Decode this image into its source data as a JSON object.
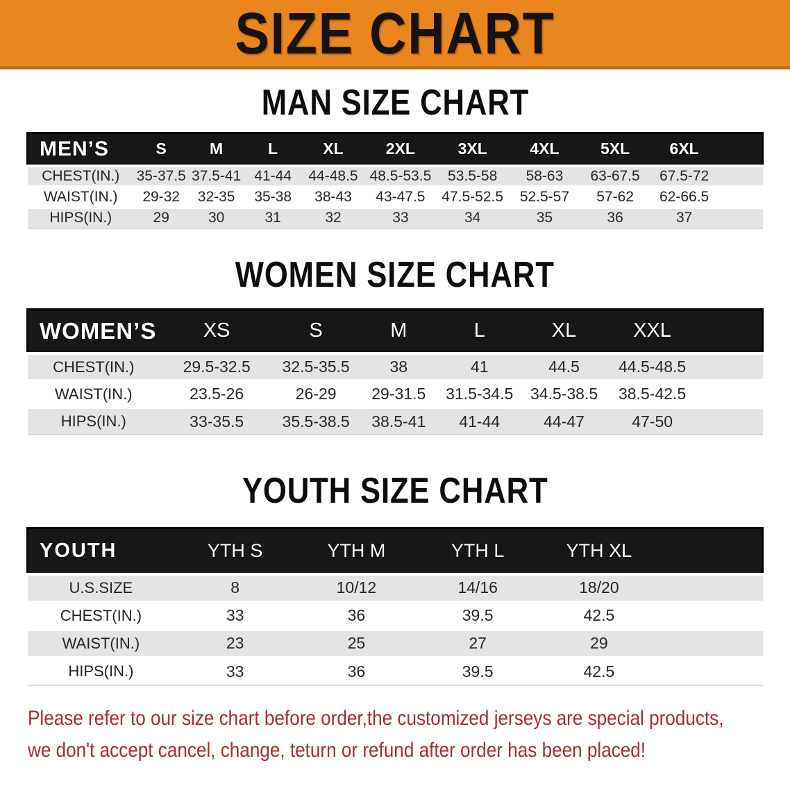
{
  "banner": {
    "title": "SIZE CHART"
  },
  "colors": {
    "banner_orange": "#E9861D",
    "banner_edge": "#BF6A10",
    "table_header_black": "#171717",
    "row_stripe_gray": "#E4E4E4",
    "disclaimer_red": "#A62E31"
  },
  "sections": [
    {
      "id": "men",
      "title": "MAN SIZE CHART",
      "table": {
        "label": "MEN’S",
        "columns": [
          "S",
          "M",
          "L",
          "XL",
          "2XL",
          "3XL",
          "4XL",
          "5XL",
          "6XL"
        ],
        "rows": [
          {
            "label": "CHEST(IN.)",
            "values": [
              "35-37.5",
              "37.5-41",
              "41-44",
              "44-48.5",
              "48.5-53.5",
              "53.5-58",
              "58-63",
              "63-67.5",
              "67.5-72"
            ]
          },
          {
            "label": "WAIST(IN.)",
            "values": [
              "29-32",
              "32-35",
              "35-38",
              "38-43",
              "43-47.5",
              "47.5-52.5",
              "52.5-57",
              "57-62",
              "62-66.5"
            ]
          },
          {
            "label": "HIPS(IN.)",
            "values": [
              "29",
              "30",
              "31",
              "32",
              "33",
              "34",
              "35",
              "36",
              "37"
            ]
          }
        ]
      }
    },
    {
      "id": "women",
      "title": "WOMEN SIZE CHART",
      "table": {
        "label": "WOMEN’S",
        "columns": [
          "XS",
          "S",
          "M",
          "L",
          "XL",
          "XXL"
        ],
        "rows": [
          {
            "label": "CHEST(IN.)",
            "values": [
              "29.5-32.5",
              "32.5-35.5",
              "38",
              "41",
              "44.5",
              "44.5-48.5"
            ]
          },
          {
            "label": "WAIST(IN.)",
            "values": [
              "23.5-26",
              "26-29",
              "29-31.5",
              "31.5-34.5",
              "34.5-38.5",
              "38.5-42.5"
            ]
          },
          {
            "label": "HIPS(IN.)",
            "values": [
              "33-35.5",
              "35.5-38.5",
              "38.5-41",
              "41-44",
              "44-47",
              "47-50"
            ]
          }
        ]
      }
    },
    {
      "id": "youth",
      "title": "YOUTH SIZE CHART",
      "table": {
        "label": "YOUTH",
        "columns": [
          "YTH S",
          "YTH M",
          "YTH L",
          "YTH XL"
        ],
        "rows": [
          {
            "label": "U.S.SIZE",
            "values": [
              "8",
              "10/12",
              "14/16",
              "18/20"
            ]
          },
          {
            "label": "CHEST(IN.)",
            "values": [
              "33",
              "36",
              "39.5",
              "42.5"
            ]
          },
          {
            "label": "WAIST(IN.)",
            "values": [
              "23",
              "25",
              "27",
              "29"
            ]
          },
          {
            "label": "HIPS(IN.)",
            "values": [
              "33",
              "36",
              "39.5",
              "42.5"
            ]
          }
        ]
      }
    }
  ],
  "disclaimer": {
    "lines": [
      "Please refer to our size chart before order,the customized jerseys are special products,",
      "we don't accept cancel, change, teturn or refund after order has been placed!"
    ]
  }
}
